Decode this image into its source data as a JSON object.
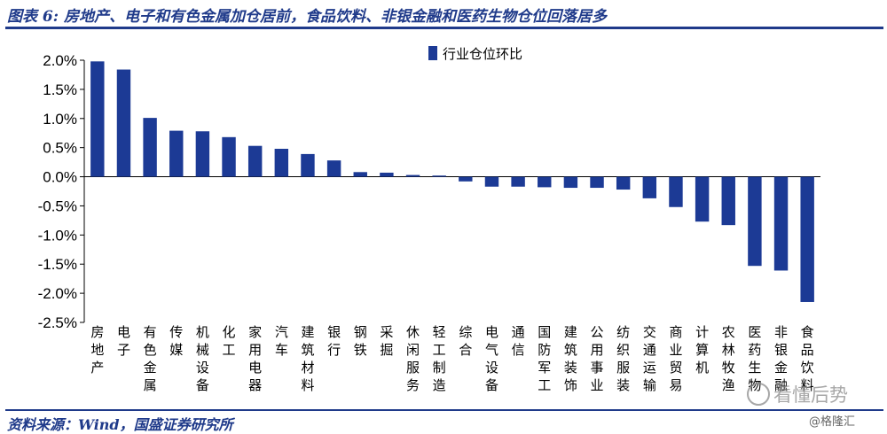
{
  "title": "图表 6:  房地产、电子和有色金属加仓居前，食品饮料、非银金融和医药生物仓位回落居多",
  "source": "资料来源：Wind，国盛证券研究所",
  "watermark": {
    "brand": "格隆汇",
    "tagline": "看懂后势",
    "handle": "@格隆汇"
  },
  "colors": {
    "bar": "#1c3a95",
    "title": "#1f3a8a"
  },
  "chart_data": {
    "type": "bar",
    "ylim": [
      -2.5,
      2.0
    ],
    "ytick_labels": [
      "2.0%",
      "1.5%",
      "1.0%",
      "0.5%",
      "0.0%",
      "-0.5%",
      "-1.0%",
      "-1.5%",
      "-2.0%",
      "-2.5%"
    ],
    "yticks": [
      2.0,
      1.5,
      1.0,
      0.5,
      0.0,
      -0.5,
      -1.0,
      -1.5,
      -2.0,
      -2.5
    ],
    "unit": "%",
    "legend_position": "top-center",
    "series": [
      {
        "name": "行业仓位环比",
        "values": [
          1.98,
          1.84,
          1.01,
          0.79,
          0.78,
          0.68,
          0.53,
          0.48,
          0.39,
          0.28,
          0.08,
          0.07,
          0.03,
          0.02,
          -0.08,
          -0.17,
          -0.17,
          -0.18,
          -0.19,
          -0.19,
          -0.22,
          -0.37,
          -0.52,
          -0.77,
          -0.83,
          -1.53,
          -1.61,
          -2.15
        ]
      }
    ],
    "categories": [
      "房地产",
      "电子",
      "有色金属",
      "传媒",
      "机械设备",
      "化工",
      "家用电器",
      "汽车",
      "建筑材料",
      "银行",
      "钢铁",
      "采掘",
      "休闲服务",
      "轻工制造",
      "综合",
      "电气设备",
      "通信",
      "国防军工",
      "建筑装饰",
      "公用事业",
      "纺织服装",
      "交通运输",
      "商业贸易",
      "计算机",
      "农林牧渔",
      "医药生物",
      "非银金融",
      "食品饮料"
    ]
  }
}
